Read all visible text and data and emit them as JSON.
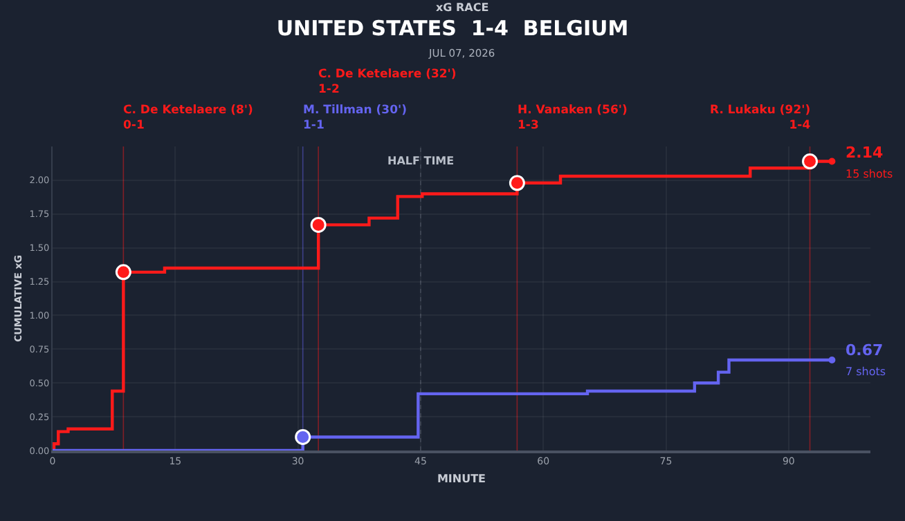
{
  "chart_data": {
    "type": "step",
    "title": "UNITED STATES  1-4  BELGIUM",
    "subtitle": "JUL 07, 2026",
    "annotations": [
      "xG RACE"
    ],
    "xlabel": "MINUTE",
    "ylabel": "CUMULATIVE xG",
    "series": [
      {
        "color": "#ff1a1a",
        "x": [
          0,
          0.17,
          0.7,
          1.9,
          7.3,
          8.66,
          13.7,
          32.5,
          38.7,
          42.2,
          45.2,
          56.8,
          62.1,
          85.3,
          92.6,
          95.3
        ],
        "values": [
          0,
          0.05,
          0.14,
          0.16,
          0.44,
          1.32,
          1.35,
          1.67,
          1.72,
          1.88,
          1.9,
          1.98,
          2.03,
          2.09,
          2.14,
          2.14
        ],
        "value_labels": [
          null,
          null,
          null,
          null,
          null,
          null,
          null,
          null,
          null,
          null,
          null,
          null,
          null,
          null,
          null,
          "2.14\n15 shots"
        ]
      },
      {
        "color": "#6464f0",
        "x": [
          0,
          30.6,
          44.7,
          65.4,
          78.5,
          81.4,
          82.7,
          95.3
        ],
        "values": [
          0,
          0.1,
          0.42,
          0.44,
          0.5,
          0.58,
          0.67,
          0.67
        ],
        "value_labels": [
          null,
          null,
          null,
          null,
          null,
          null,
          null,
          "0.67\n7 shots"
        ]
      },
      {
        "type": "scatter",
        "color": "#ff1a1a",
        "x": [
          8.66,
          32.5,
          56.8,
          92.6
        ],
        "values": [
          1.32,
          1.67,
          1.98,
          2.14
        ]
      },
      {
        "type": "scatter",
        "color": "#6464f0",
        "x": [
          30.6
        ],
        "values": [
          0.1
        ]
      }
    ],
    "ref_lines": [
      {
        "axis": "x",
        "value": 45,
        "label": "HALF TIME",
        "color": "#5a6272",
        "line_style": "dotted"
      },
      {
        "axis": "x",
        "value": 8.66,
        "label": "C. De Ketelaere (8')\n0-1",
        "color": "#ff1a1a",
        "line_style": "solid"
      },
      {
        "axis": "x",
        "value": 30.6,
        "label": "M. Tillman (30')\n1-1",
        "color": "#6464f0",
        "line_style": "solid"
      },
      {
        "axis": "x",
        "value": 32.5,
        "label": "C. De Ketelaere (32')\n1-2",
        "color": "#ff1a1a",
        "line_style": "solid"
      },
      {
        "axis": "x",
        "value": 56.8,
        "label": "H. Vanaken (56')\n1-3",
        "color": "#ff1a1a",
        "line_style": "solid"
      },
      {
        "axis": "x",
        "value": 92.6,
        "label": "R. Lukaku (92')\n1-4",
        "color": "#ff1a1a",
        "line_style": "solid"
      }
    ],
    "xlim": [
      0,
      100
    ],
    "xticks": [
      0,
      15,
      30,
      45,
      60,
      75,
      90
    ],
    "ylim": [
      0,
      2.25
    ],
    "yticks": [
      {
        "value": 0,
        "label": "0.00"
      },
      {
        "value": 0.25,
        "label": "0.25"
      },
      {
        "value": 0.5,
        "label": "0.50"
      },
      {
        "value": 0.75,
        "label": "0.75"
      },
      {
        "value": 1,
        "label": "1.00"
      },
      {
        "value": 1.25,
        "label": "1.25"
      },
      {
        "value": 1.5,
        "label": "1.50"
      },
      {
        "value": 1.75,
        "label": "1.75"
      },
      {
        "value": 2,
        "label": "2.00"
      }
    ],
    "grid": true
  }
}
